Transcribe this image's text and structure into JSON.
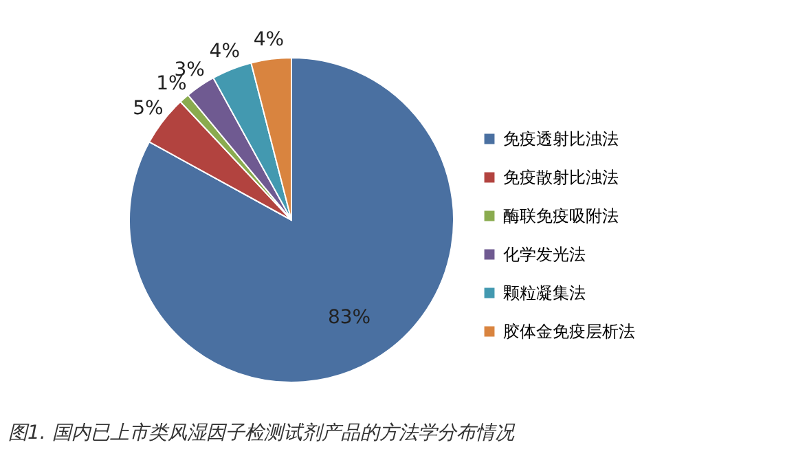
{
  "chart_data": {
    "type": "pie",
    "title": "图1. 国内已上市类风湿因子检测试剂产品的方法学分布情况",
    "categories": [
      "免疫透射比浊法",
      "免疫散射比浊法",
      "酶联免疫吸附法",
      "化学发光法",
      "颗粒凝集法",
      "胶体金免疫层析法"
    ],
    "values": [
      83,
      5,
      1,
      3,
      4,
      4
    ],
    "colors": [
      "#4a70a1",
      "#b2433f",
      "#8aab4f",
      "#6f5a91",
      "#4399b0",
      "#d9843f"
    ],
    "value_labels": [
      "83%",
      "5%",
      "1%",
      "3%",
      "4%",
      "4%"
    ],
    "legend": "right"
  }
}
